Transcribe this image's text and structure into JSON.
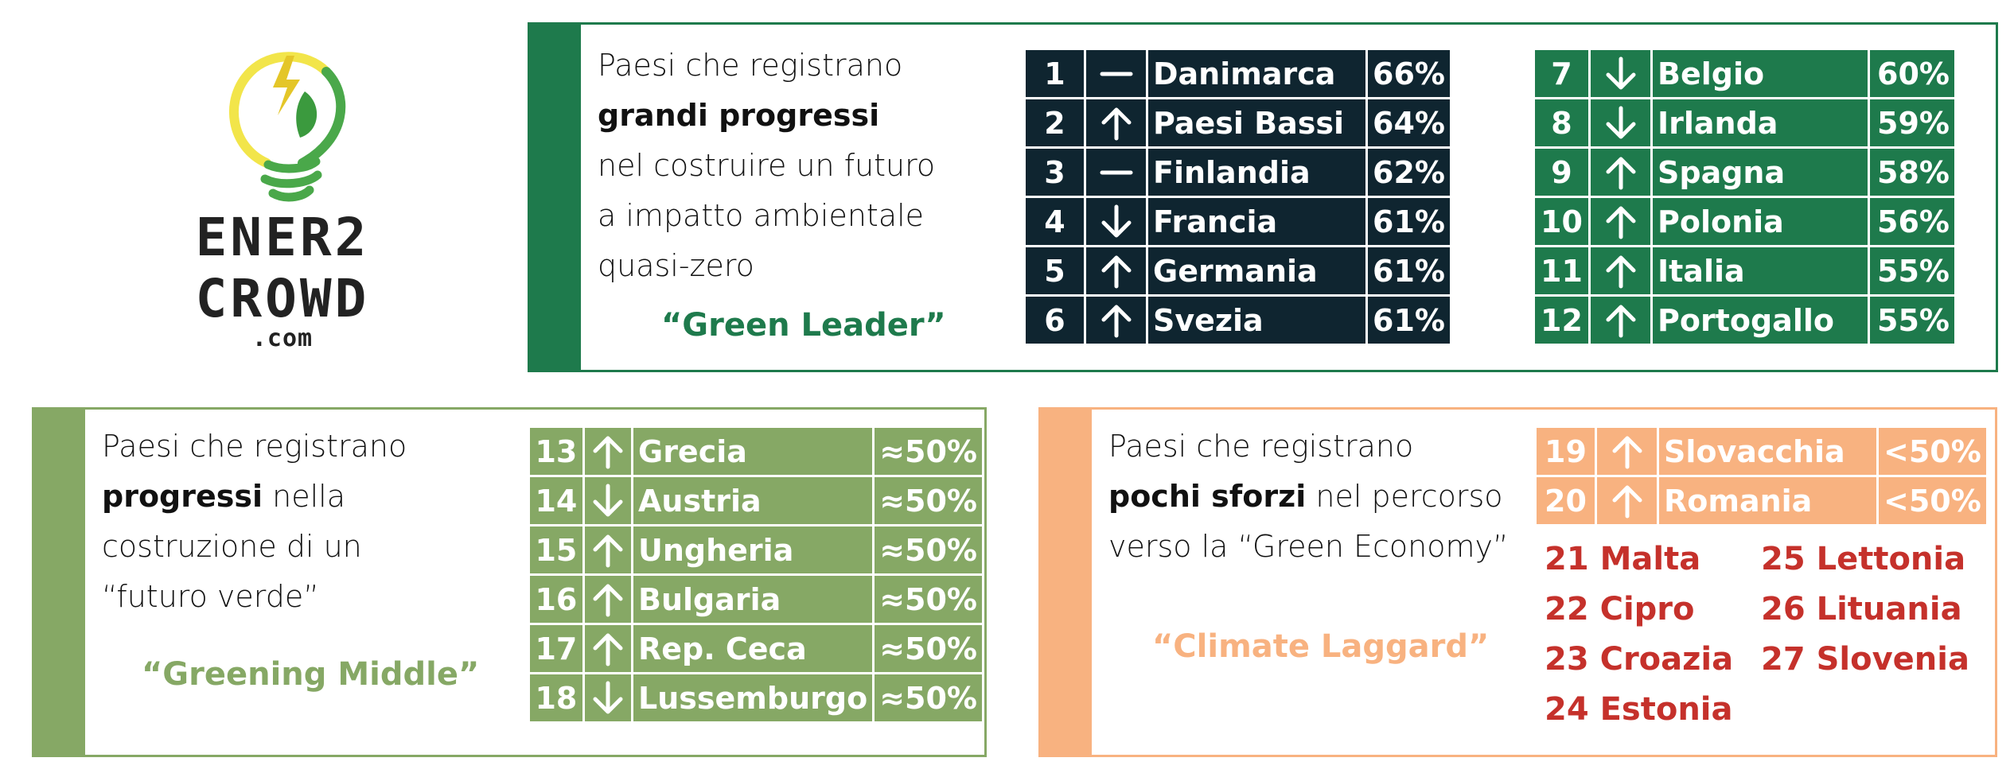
{
  "logo": {
    "line1": "ENER2",
    "line2": "CROWD",
    "line3": ".com"
  },
  "colors": {
    "green_leader": "#1e7a4c",
    "green_leader_dark": "#0f2530",
    "greening_middle": "#86a865",
    "climate_laggard": "#f8b280",
    "laggard_text": "#c5312b"
  },
  "leader": {
    "desc_line1": "Paesi che registrano",
    "desc_bold": "grandi progressi",
    "desc_line3": "nel costruire un futuro",
    "desc_line4": "a impatto ambientale",
    "desc_line5": "quasi-zero",
    "tag": "“Green Leader”",
    "table_a": [
      {
        "rank": "1",
        "trend": "stable",
        "country": "Danimarca",
        "pct": "66%"
      },
      {
        "rank": "2",
        "trend": "up",
        "country": "Paesi Bassi",
        "pct": "64%"
      },
      {
        "rank": "3",
        "trend": "stable",
        "country": "Finlandia",
        "pct": "62%"
      },
      {
        "rank": "4",
        "trend": "down",
        "country": "Francia",
        "pct": "61%"
      },
      {
        "rank": "5",
        "trend": "up",
        "country": "Germania",
        "pct": "61%"
      },
      {
        "rank": "6",
        "trend": "up",
        "country": "Svezia",
        "pct": "61%"
      }
    ],
    "table_b": [
      {
        "rank": "7",
        "trend": "down",
        "country": "Belgio",
        "pct": "60%"
      },
      {
        "rank": "8",
        "trend": "down",
        "country": "Irlanda",
        "pct": "59%"
      },
      {
        "rank": "9",
        "trend": "up",
        "country": "Spagna",
        "pct": "58%"
      },
      {
        "rank": "10",
        "trend": "up",
        "country": "Polonia",
        "pct": "56%"
      },
      {
        "rank": "11",
        "trend": "up",
        "country": "Italia",
        "pct": "55%"
      },
      {
        "rank": "12",
        "trend": "up",
        "country": "Portogallo",
        "pct": "55%"
      }
    ]
  },
  "middle": {
    "desc_line1": "Paesi che registrano",
    "desc_bold": "progressi",
    "desc_after_bold": " nella",
    "desc_line3": "costruzione di un",
    "desc_line4": "“futuro verde”",
    "tag": "“Greening Middle”",
    "table": [
      {
        "rank": "13",
        "trend": "up",
        "country": "Grecia",
        "pct": "≈50%"
      },
      {
        "rank": "14",
        "trend": "down",
        "country": "Austria",
        "pct": "≈50%"
      },
      {
        "rank": "15",
        "trend": "up",
        "country": "Ungheria",
        "pct": "≈50%"
      },
      {
        "rank": "16",
        "trend": "up",
        "country": "Bulgaria",
        "pct": "≈50%"
      },
      {
        "rank": "17",
        "trend": "up",
        "country": "Rep. Ceca",
        "pct": "≈50%"
      },
      {
        "rank": "18",
        "trend": "down",
        "country": "Lussemburgo",
        "pct": "≈50%"
      }
    ]
  },
  "laggard": {
    "desc_line1": "Paesi che registrano",
    "desc_bold": "pochi sforzi",
    "desc_after_bold": " nel percorso",
    "desc_line3": "verso la “Green Economy”",
    "tag": "“Climate Laggard”",
    "table": [
      {
        "rank": "19",
        "trend": "up",
        "country": "Slovacchia",
        "pct": "<50%"
      },
      {
        "rank": "20",
        "trend": "up",
        "country": "Romania",
        "pct": "<50%"
      }
    ],
    "list": [
      "21 Malta",
      "22 Cipro",
      "23 Croazia",
      "24 Estonia",
      "25 Lettonia",
      "26 Lituania",
      "27 Slovenia"
    ]
  }
}
